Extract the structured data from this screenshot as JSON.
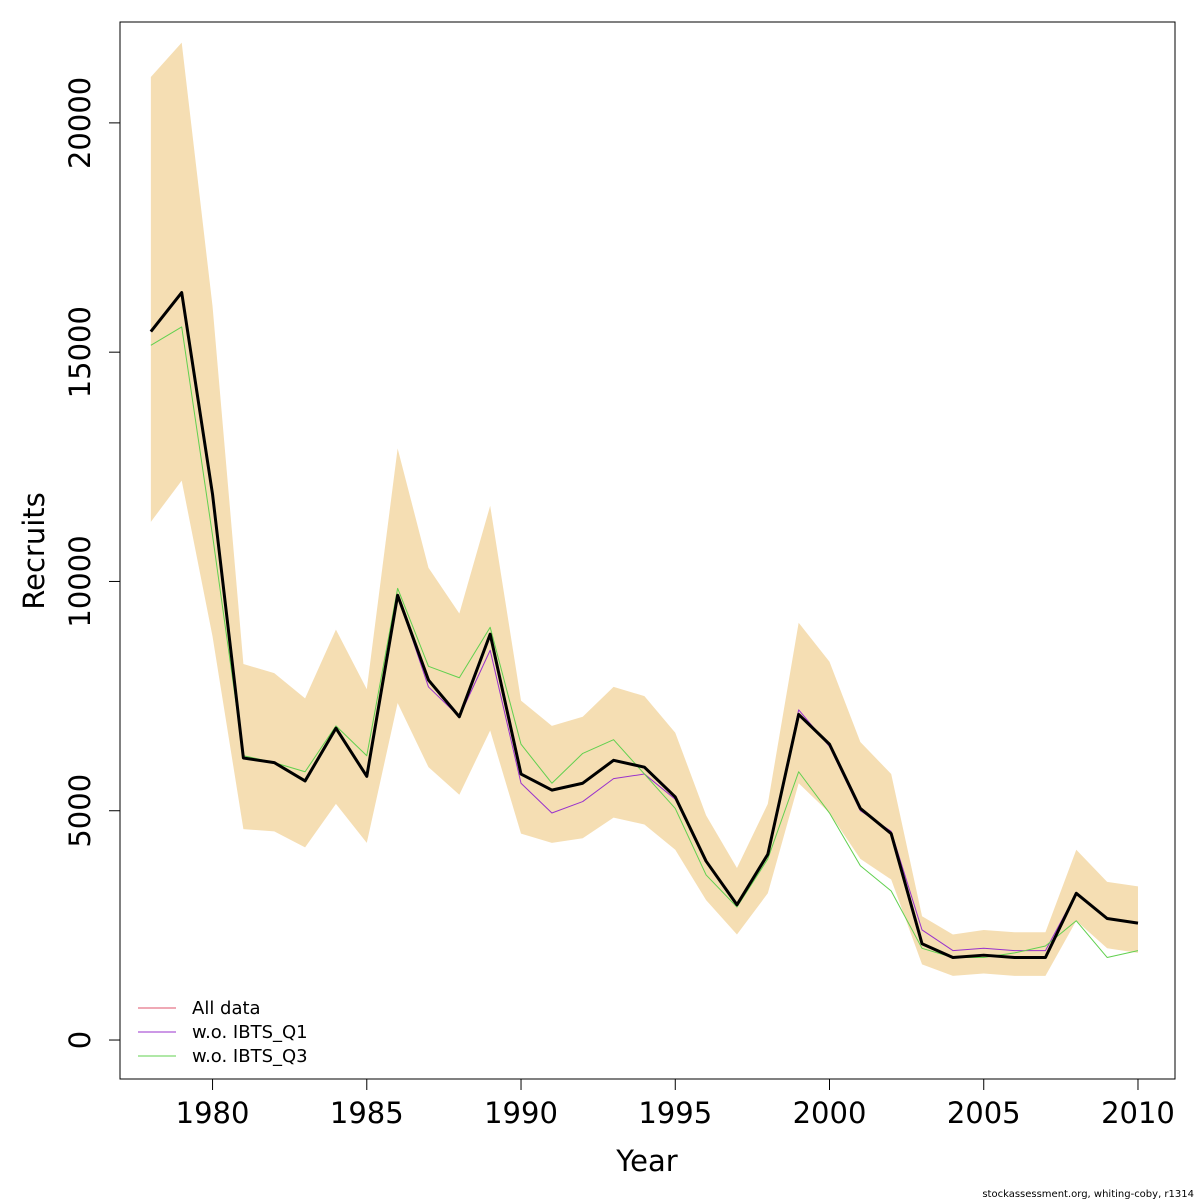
{
  "chart_data": {
    "type": "line",
    "title": "",
    "xlabel": "Year",
    "ylabel": "Recruits",
    "xlim": [
      1977,
      2011.2
    ],
    "ylim": [
      -850,
      22200
    ],
    "xticks": [
      1980,
      1985,
      1990,
      1995,
      2000,
      2005,
      2010
    ],
    "yticks": [
      0,
      5000,
      10000,
      15000,
      20000
    ],
    "grid": false,
    "legend_position": "bottom-left",
    "x": [
      1978,
      1979,
      1980,
      1981,
      1982,
      1983,
      1984,
      1985,
      1986,
      1987,
      1988,
      1989,
      1990,
      1991,
      1992,
      1993,
      1994,
      1995,
      1996,
      1997,
      1998,
      1999,
      2000,
      2001,
      2002,
      2003,
      2004,
      2005,
      2006,
      2007,
      2008,
      2009,
      2010
    ],
    "band": {
      "color": "#F5DEB3",
      "upper": [
        21000,
        21750,
        16000,
        8200,
        8000,
        7450,
        8950,
        7650,
        12900,
        10300,
        9300,
        11650,
        7400,
        6850,
        7050,
        7700,
        7500,
        6700,
        4900,
        3750,
        5150,
        9100,
        8250,
        6500,
        5800,
        2700,
        2300,
        2400,
        2350,
        2350,
        4150,
        3450,
        3350
      ],
      "lower": [
        11300,
        12200,
        8800,
        4600,
        4550,
        4200,
        5150,
        4300,
        7350,
        5950,
        5350,
        6750,
        4500,
        4300,
        4400,
        4850,
        4700,
        4150,
        3050,
        2300,
        3200,
        5600,
        4950,
        3950,
        3500,
        1650,
        1400,
        1450,
        1400,
        1400,
        2600,
        2000,
        1900
      ]
    },
    "series": [
      {
        "name": "All data",
        "color": "#DF536B",
        "width": 1,
        "values": [
          15450,
          16300,
          11900,
          6150,
          6050,
          5650,
          6800,
          5750,
          9700,
          7850,
          7050,
          8850,
          5800,
          5450,
          5600,
          6100,
          5950,
          5300,
          3900,
          2950,
          4050,
          7100,
          6450,
          5050,
          4500,
          2100,
          1800,
          1850,
          1800,
          1800,
          3200,
          2650,
          2550
        ]
      },
      {
        "name": "w.o. IBTS_Q1",
        "color": "#9932CC",
        "width": 1,
        "values": [
          15450,
          16300,
          11900,
          6150,
          6050,
          5650,
          6800,
          5750,
          9700,
          7700,
          7050,
          8500,
          5600,
          4950,
          5200,
          5700,
          5800,
          5250,
          3900,
          2950,
          4050,
          7200,
          6400,
          5000,
          4550,
          2400,
          1950,
          2000,
          1950,
          1950,
          3200,
          2650,
          2550
        ]
      },
      {
        "name": "w.o. IBTS_Q3",
        "color": "#61D04F",
        "width": 1,
        "values": [
          15150,
          15550,
          11000,
          6200,
          6050,
          5850,
          6850,
          6200,
          9850,
          8150,
          7900,
          9000,
          6450,
          5600,
          6250,
          6550,
          5800,
          5050,
          3600,
          2900,
          3950,
          5850,
          4950,
          3800,
          3250,
          2000,
          1800,
          1800,
          1900,
          2050,
          2600,
          1800,
          1950
        ]
      },
      {
        "name": "",
        "color": "#000000",
        "width": 3,
        "values": [
          15450,
          16300,
          11900,
          6150,
          6050,
          5650,
          6800,
          5750,
          9700,
          7850,
          7050,
          8850,
          5800,
          5450,
          5600,
          6100,
          5950,
          5300,
          3900,
          2950,
          4050,
          7100,
          6450,
          5050,
          4500,
          2100,
          1800,
          1850,
          1800,
          1800,
          3200,
          2650,
          2550
        ]
      }
    ],
    "legend": [
      "All data",
      "w.o. IBTS_Q1",
      "w.o. IBTS_Q3"
    ]
  },
  "credit": "stockassessment.org, whiting-coby, r1314"
}
